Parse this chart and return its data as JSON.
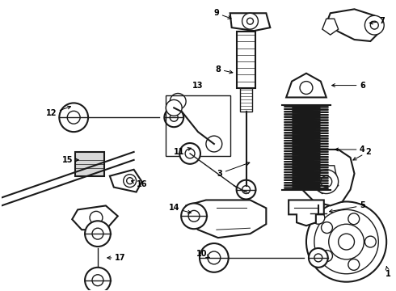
{
  "background_color": "#ffffff",
  "figsize": [
    4.9,
    3.6
  ],
  "dpi": 100,
  "line_color": "#1a1a1a"
}
